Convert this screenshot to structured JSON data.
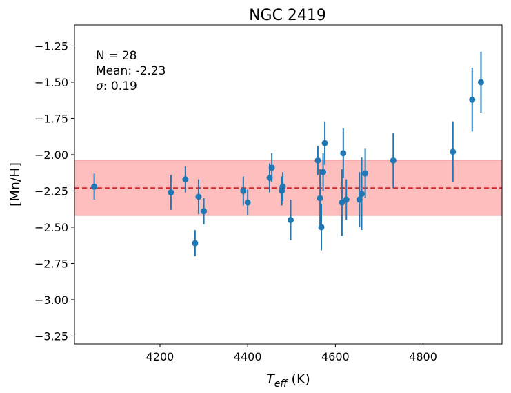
{
  "chart_data": {
    "type": "scatter",
    "title": "NGC 2419",
    "xlabel_main": "T",
    "xlabel_sub": "eff",
    "xlabel_unit": " (K)",
    "ylabel": "[Mn/H]",
    "xlim": [
      4005,
      4980
    ],
    "ylim": [
      -3.305,
      -1.105
    ],
    "xticks": [
      4200,
      4400,
      4600,
      4800
    ],
    "yticks": [
      -3.25,
      -3.0,
      -2.75,
      -2.5,
      -2.25,
      -2.0,
      -1.75,
      -1.5,
      -1.25
    ],
    "ytick_labels": [
      "−3.25",
      "−3.00",
      "−2.75",
      "−2.50",
      "−2.25",
      "−2.00",
      "−1.75",
      "−1.50",
      "−1.25"
    ],
    "mean": -2.23,
    "sigma": 0.19,
    "stats": {
      "n_label": "N = 28",
      "mean_label": "Mean: -2.23",
      "sigma_symbol": "σ",
      "sigma_label": ": 0.19"
    },
    "colors": {
      "points": "#1f77b4",
      "mean_line": "#d62728",
      "band": "#ffb3b3"
    },
    "points": [
      {
        "x": 4050,
        "y": -2.22,
        "err": 0.09
      },
      {
        "x": 4225,
        "y": -2.26,
        "err": 0.12
      },
      {
        "x": 4258,
        "y": -2.17,
        "err": 0.09
      },
      {
        "x": 4280,
        "y": -2.61,
        "err": 0.09
      },
      {
        "x": 4288,
        "y": -2.29,
        "err": 0.12
      },
      {
        "x": 4300,
        "y": -2.39,
        "err": 0.09
      },
      {
        "x": 4390,
        "y": -2.25,
        "err": 0.1
      },
      {
        "x": 4400,
        "y": -2.33,
        "err": 0.09
      },
      {
        "x": 4450,
        "y": -2.16,
        "err": 0.1
      },
      {
        "x": 4455,
        "y": -2.09,
        "err": 0.1
      },
      {
        "x": 4478,
        "y": -2.25,
        "err": 0.1
      },
      {
        "x": 4480,
        "y": -2.22,
        "err": 0.1
      },
      {
        "x": 4498,
        "y": -2.45,
        "err": 0.14
      },
      {
        "x": 4560,
        "y": -2.04,
        "err": 0.1
      },
      {
        "x": 4565,
        "y": -2.3,
        "err": 0.2
      },
      {
        "x": 4568,
        "y": -2.5,
        "err": 0.16
      },
      {
        "x": 4572,
        "y": -2.12,
        "err": 0.13
      },
      {
        "x": 4576,
        "y": -1.92,
        "err": 0.15
      },
      {
        "x": 4615,
        "y": -2.33,
        "err": 0.23
      },
      {
        "x": 4618,
        "y": -1.99,
        "err": 0.17
      },
      {
        "x": 4625,
        "y": -2.31,
        "err": 0.14
      },
      {
        "x": 4655,
        "y": -2.31,
        "err": 0.19
      },
      {
        "x": 4660,
        "y": -2.27,
        "err": 0.25
      },
      {
        "x": 4668,
        "y": -2.13,
        "err": 0.17
      },
      {
        "x": 4732,
        "y": -2.04,
        "err": 0.19
      },
      {
        "x": 4868,
        "y": -1.98,
        "err": 0.21
      },
      {
        "x": 4912,
        "y": -1.62,
        "err": 0.22
      },
      {
        "x": 4932,
        "y": -1.5,
        "err": 0.21
      }
    ]
  }
}
